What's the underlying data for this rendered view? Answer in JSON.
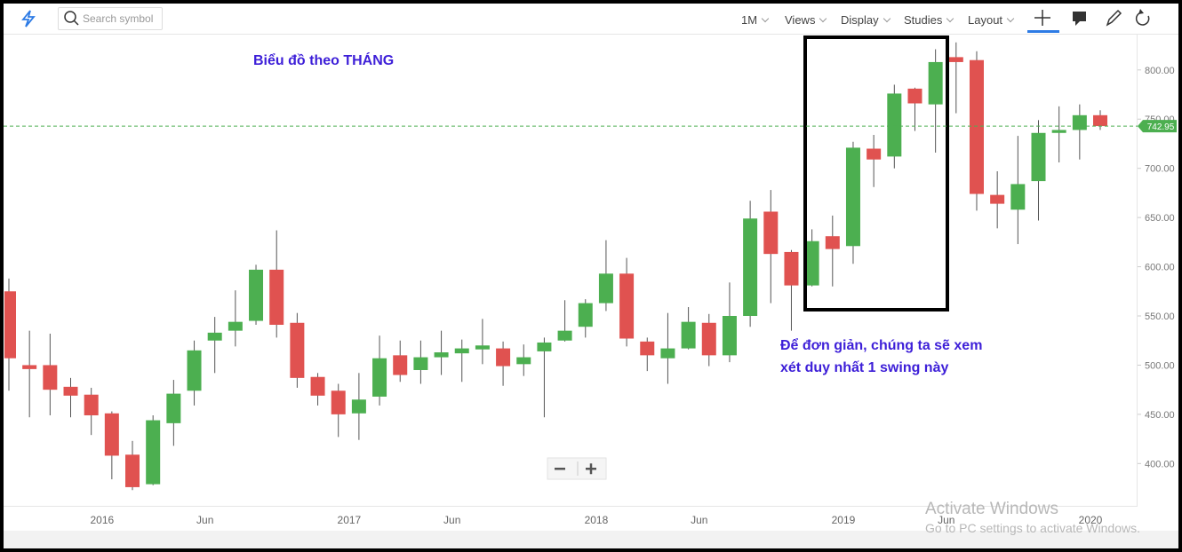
{
  "ui": {
    "search_placeholder": "Search symbol",
    "menu": [
      "1M",
      "Views",
      "Display",
      "Studies",
      "Layout"
    ]
  },
  "watermark": {
    "title": "Activate Windows",
    "subtitle": "Go to PC settings to activate Windows."
  },
  "chart_data": {
    "type": "candlestick",
    "title": "Biểu đồ theo THÁNG",
    "annotation": "Để đơn giản, chúng ta sẽ xem xét duy nhất 1 swing này",
    "categories": [
      null,
      null,
      null,
      null,
      null,
      "2016",
      null,
      null,
      null,
      null,
      "Jun",
      null,
      null,
      null,
      null,
      null,
      null,
      "2017",
      null,
      null,
      null,
      null,
      "Jun",
      null,
      null,
      null,
      null,
      null,
      null,
      "2018",
      null,
      null,
      null,
      null,
      "Jun",
      null,
      null,
      null,
      null,
      null,
      null,
      "2019",
      null,
      null,
      null,
      null,
      "Jun",
      null,
      null,
      null,
      null,
      null,
      null,
      "2020"
    ],
    "open": [
      575,
      500,
      500,
      478,
      470,
      451,
      409,
      379,
      441,
      474,
      525,
      535,
      545,
      597,
      543,
      488,
      474,
      451,
      468,
      510,
      495,
      508,
      512,
      516,
      517,
      501,
      514,
      525,
      539,
      563,
      593,
      524,
      507,
      517,
      543,
      510,
      550,
      656,
      615,
      581,
      631,
      621,
      720,
      712,
      781,
      765,
      813,
      810,
      673,
      658,
      687,
      736,
      739,
      754
    ],
    "high": [
      588,
      535,
      532,
      487,
      477,
      453,
      423,
      449,
      485,
      525,
      549,
      576,
      602,
      637,
      553,
      492,
      481,
      492,
      530,
      525,
      525,
      535,
      526,
      547,
      524,
      521,
      528,
      566,
      567,
      627,
      609,
      528,
      553,
      559,
      552,
      584,
      667,
      678,
      617,
      638,
      652,
      727,
      734,
      785,
      782,
      821,
      828,
      819,
      697,
      733,
      749,
      763,
      765,
      759
    ],
    "low": [
      474,
      447,
      449,
      447,
      429,
      384,
      373,
      378,
      418,
      459,
      492,
      519,
      541,
      528,
      477,
      459,
      427,
      424,
      459,
      483,
      481,
      490,
      483,
      501,
      479,
      489,
      447,
      524,
      528,
      555,
      519,
      494,
      481,
      516,
      499,
      503,
      539,
      563,
      535,
      580,
      580,
      603,
      681,
      700,
      738,
      716,
      756,
      657,
      639,
      623,
      647,
      706,
      709,
      739
    ],
    "close": [
      507,
      496,
      475,
      469,
      449,
      408,
      376,
      444,
      471,
      515,
      533,
      544,
      597,
      541,
      487,
      469,
      450,
      465,
      507,
      490,
      508,
      513,
      517,
      520,
      499,
      508,
      523,
      535,
      563,
      593,
      527,
      510,
      517,
      544,
      510,
      550,
      649,
      613,
      581,
      626,
      618,
      721,
      709,
      776,
      766,
      808,
      808,
      674,
      664,
      684,
      736,
      739,
      754,
      742.95
    ],
    "last_price": 742.95,
    "up_color": "#4caf50",
    "down_color": "#e05250",
    "ylim": [
      357,
      835
    ],
    "yticks": [
      {
        "value": 400,
        "label": "400.00"
      },
      {
        "value": 450,
        "label": "450.00"
      },
      {
        "value": 500,
        "label": "500.00"
      },
      {
        "value": 550,
        "label": "550.00"
      },
      {
        "value": 600,
        "label": "600.00"
      },
      {
        "value": 650,
        "label": "650.00"
      },
      {
        "value": 700,
        "label": "700.00"
      },
      {
        "value": 750,
        "label": "750.00"
      },
      {
        "value": 800,
        "label": "800.00"
      }
    ],
    "grid": false
  }
}
